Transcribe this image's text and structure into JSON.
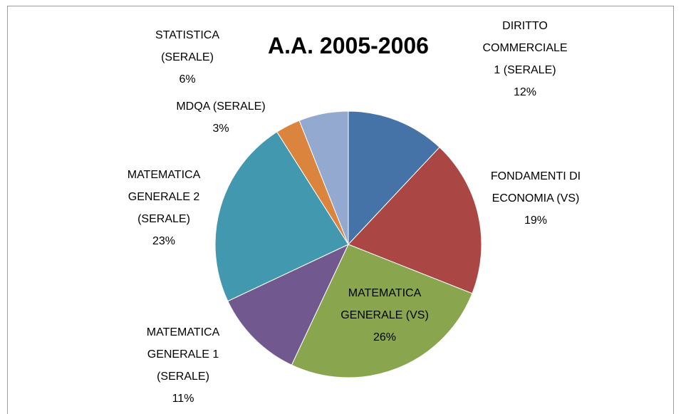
{
  "chart_data": {
    "type": "pie",
    "title": "A.A. 2005-2006",
    "categories": [
      "DIRITTO COMMERCIALE 1 (SERALE)",
      "FONDAMENTI DI ECONOMIA (VS)",
      "MATEMATICA GENERALE (VS)",
      "MATEMATICA GENERALE 1 (SERALE)",
      "MATEMATICA GENERALE 2 (SERALE)",
      "MDQA (SERALE)",
      "STATISTICA (SERALE)"
    ],
    "values": [
      12,
      19,
      26,
      11,
      23,
      3,
      6
    ],
    "value_labels": [
      "12%",
      "19%",
      "26%",
      "11%",
      "23%",
      "3%",
      "6%"
    ],
    "colors": [
      "#4572a7",
      "#aa4643",
      "#89a54e",
      "#71588f",
      "#4198af",
      "#db843d",
      "#93a9cf"
    ]
  }
}
